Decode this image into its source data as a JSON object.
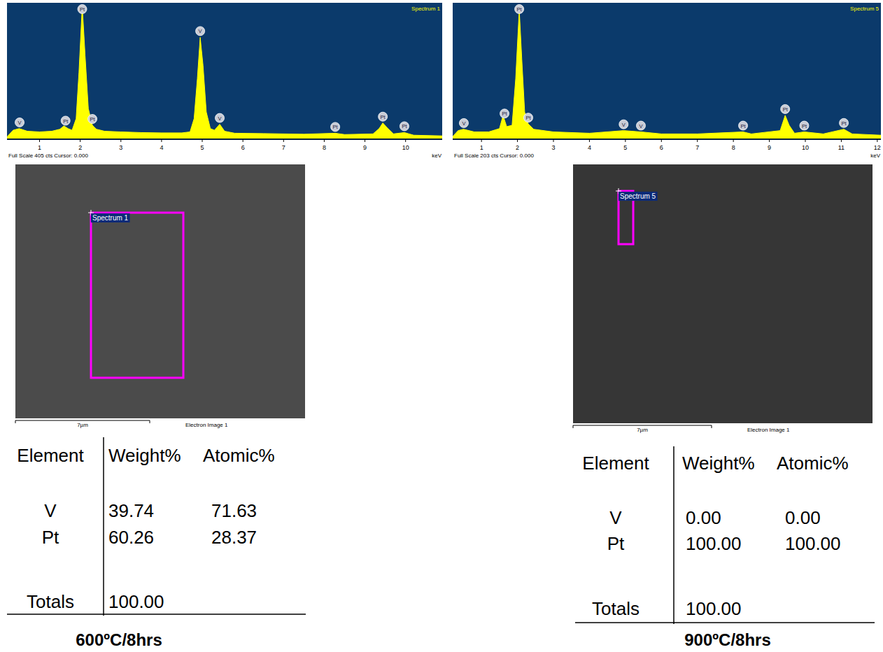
{
  "chart_data": [
    {
      "type": "area",
      "title": "Spectrum 1",
      "subtitle": "Full Scale 405 cts Cursor: 0.000",
      "x_label": "keV",
      "color": "#ffff00",
      "x": [
        0.2,
        0.35,
        0.5,
        0.7,
        1.0,
        1.3,
        1.5,
        1.6,
        1.7,
        1.8,
        1.9,
        1.97,
        2.05,
        2.12,
        2.2,
        2.3,
        2.4,
        2.6,
        3.0,
        3.5,
        4.0,
        4.5,
        4.7,
        4.8,
        4.88,
        4.95,
        5.02,
        5.1,
        5.2,
        5.3,
        5.43,
        5.55,
        5.8,
        6.5,
        7.5,
        8.27,
        8.5,
        9.2,
        9.35,
        9.44,
        9.55,
        9.7,
        9.97,
        10.2,
        10.9
      ],
      "values": [
        5,
        25,
        30,
        22,
        20,
        22,
        28,
        38,
        30,
        25,
        60,
        200,
        400,
        250,
        90,
        40,
        28,
        22,
        20,
        18,
        17,
        17,
        20,
        60,
        180,
        305,
        220,
        80,
        30,
        25,
        43,
        22,
        16,
        15,
        13,
        16,
        12,
        14,
        30,
        47,
        32,
        14,
        18,
        10,
        8
      ],
      "xlim": [
        0.2,
        10.9
      ],
      "xticks": [
        1,
        2,
        3,
        4,
        5,
        6,
        7,
        8,
        9,
        10
      ],
      "ylim": [
        0,
        405
      ],
      "tick_labels": "x",
      "annotations": [
        {
          "label": "V",
          "x": 0.51
        },
        {
          "label": "Pt",
          "x": 1.64
        },
        {
          "label": "Pt",
          "x": 2.05
        },
        {
          "label": "Pt",
          "x": 2.3
        },
        {
          "label": "V",
          "x": 4.95
        },
        {
          "label": "V",
          "x": 5.43
        },
        {
          "label": "Pt",
          "x": 8.27
        },
        {
          "label": "Pt",
          "x": 9.44
        },
        {
          "label": "Pt",
          "x": 9.97
        }
      ]
    },
    {
      "type": "area",
      "title": "Spectrum 5",
      "subtitle": "Full Scale 203 cts Cursor: 0.000",
      "x_label": "keV",
      "color": "#ffff00",
      "x": [
        0.2,
        0.35,
        0.5,
        0.8,
        1.2,
        1.5,
        1.6,
        1.7,
        1.85,
        1.95,
        2.05,
        2.12,
        2.2,
        2.3,
        2.45,
        3.0,
        4.0,
        4.95,
        5.43,
        6.0,
        7.0,
        8.27,
        8.5,
        9.3,
        9.44,
        9.55,
        9.7,
        9.97,
        10.5,
        11.07,
        11.3,
        12.1
      ],
      "values": [
        3,
        12,
        14,
        10,
        10,
        15,
        35,
        18,
        20,
        90,
        195,
        120,
        40,
        22,
        14,
        10,
        8,
        12,
        10,
        7,
        7,
        10,
        7,
        12,
        35,
        20,
        8,
        10,
        7,
        14,
        7,
        5
      ],
      "xlim": [
        0.2,
        12.1
      ],
      "xticks": [
        1,
        2,
        3,
        4,
        5,
        6,
        7,
        8,
        9,
        10,
        11,
        12
      ],
      "ylim": [
        0,
        203
      ],
      "tick_labels": "x",
      "annotations": [
        {
          "label": "V",
          "x": 0.51
        },
        {
          "label": "Pt",
          "x": 1.64
        },
        {
          "label": "Pt",
          "x": 2.05
        },
        {
          "label": "Pt",
          "x": 2.3
        },
        {
          "label": "V",
          "x": 4.95
        },
        {
          "label": "V",
          "x": 5.43
        },
        {
          "label": "Pt",
          "x": 8.27
        },
        {
          "label": "Pt",
          "x": 9.44
        },
        {
          "label": "Pt",
          "x": 9.97
        },
        {
          "label": "Pt",
          "x": 11.07
        }
      ]
    }
  ],
  "panels": [
    {
      "image": {
        "region_label": "Spectrum 1",
        "scale_bar": "7µm",
        "caption": "Electron Image 1"
      },
      "table": {
        "header": [
          "Element",
          "Weight%",
          "Atomic%"
        ],
        "rows": [
          [
            "V",
            "39.74",
            "71.63"
          ],
          [
            "Pt",
            "60.26",
            "28.37"
          ]
        ],
        "totals": [
          "Totals",
          "100.00"
        ]
      },
      "caption": "600ºC/8hrs"
    },
    {
      "image": {
        "region_label": "Spectrum 5",
        "scale_bar": "7µm",
        "caption": "Electron Image 1"
      },
      "table": {
        "header": [
          "Element",
          "Weight%",
          "Atomic%"
        ],
        "rows": [
          [
            "V",
            "0.00",
            "0.00"
          ],
          [
            "Pt",
            "100.00",
            "100.00"
          ]
        ],
        "totals": [
          "Totals",
          "100.00"
        ]
      },
      "caption": "900ºC/8hrs"
    }
  ]
}
